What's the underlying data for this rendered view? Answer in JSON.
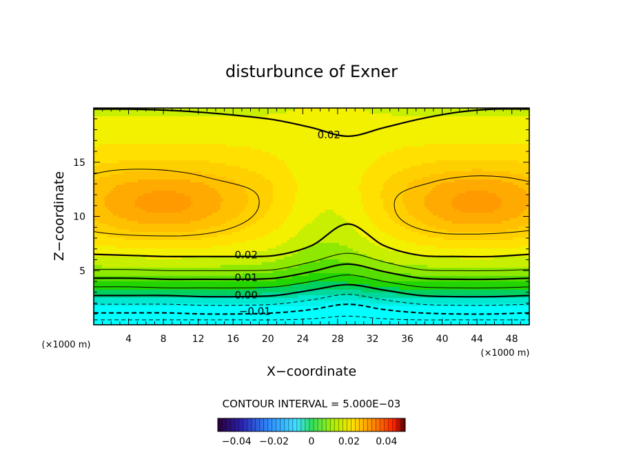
{
  "chart_data": {
    "type": "contour",
    "title": "disturbunce of Exner",
    "xlabel": "X−coordinate",
    "ylabel": "Z−coordinate",
    "x_unit": "(×1000 m)",
    "y_unit": "(×1000 m)",
    "xlim": [
      0,
      50
    ],
    "ylim": [
      0,
      20
    ],
    "x_ticks": [
      4,
      8,
      12,
      16,
      20,
      24,
      28,
      32,
      36,
      40,
      44,
      48
    ],
    "y_ticks": [
      5,
      10,
      15
    ],
    "contour_interval_text": "CONTOUR INTERVAL = 5.000E−03",
    "contour_interval": 0.005,
    "contour_labels": [
      {
        "text": "0.02",
        "x": 27,
        "z": 17.6
      },
      {
        "text": "0.02",
        "x": 17.5,
        "z": 6.5
      },
      {
        "text": "0.01",
        "x": 17.5,
        "z": 4.4
      },
      {
        "text": "0.00",
        "x": 17.5,
        "z": 2.8
      },
      {
        "text": "−0.01",
        "x": 18.5,
        "z": 1.3
      }
    ],
    "colorbar": {
      "range": [
        -0.05,
        0.05
      ],
      "tick_values": [
        -0.04,
        -0.02,
        0,
        0.02,
        0.04
      ],
      "tick_labels": [
        "−0.04",
        "−0.02",
        "0",
        "0.02",
        "0.04"
      ]
    },
    "contour_levels": [
      {
        "value": -0.015,
        "style": "dashed",
        "z_at": [
          0.45,
          0.45,
          0.45,
          0.45,
          0.45,
          0.45,
          0.55,
          0.8,
          0.55,
          0.45,
          0.45,
          0.45,
          0.45
        ]
      },
      {
        "value": -0.01,
        "style": "dashed-bold",
        "z_at": [
          1.1,
          1.1,
          1.1,
          1.0,
          1.0,
          1.1,
          1.4,
          1.9,
          1.4,
          1.1,
          1.0,
          1.0,
          1.1
        ]
      },
      {
        "value": -0.005,
        "style": "dashed",
        "z_at": [
          1.9,
          1.9,
          1.9,
          1.8,
          1.8,
          1.9,
          2.3,
          2.8,
          2.3,
          1.9,
          1.8,
          1.8,
          1.9
        ]
      },
      {
        "value": 0.0,
        "style": "bold",
        "z_at": [
          2.7,
          2.7,
          2.7,
          2.6,
          2.6,
          2.7,
          3.2,
          3.7,
          3.2,
          2.7,
          2.6,
          2.6,
          2.7
        ]
      },
      {
        "value": 0.005,
        "style": "thin",
        "z_at": [
          3.5,
          3.5,
          3.4,
          3.4,
          3.4,
          3.5,
          4.0,
          4.6,
          4.0,
          3.5,
          3.4,
          3.4,
          3.5
        ]
      },
      {
        "value": 0.01,
        "style": "bold",
        "z_at": [
          4.3,
          4.3,
          4.2,
          4.2,
          4.2,
          4.3,
          4.9,
          5.6,
          4.9,
          4.3,
          4.2,
          4.2,
          4.3
        ]
      },
      {
        "value": 0.015,
        "style": "thin",
        "z_at": [
          5.1,
          5.1,
          5.0,
          5.0,
          5.0,
          5.1,
          5.8,
          6.6,
          5.8,
          5.1,
          5.0,
          5.0,
          5.1
        ]
      },
      {
        "value": 0.02,
        "style": "bold",
        "z_at": [
          6.5,
          6.4,
          6.3,
          6.3,
          6.3,
          6.4,
          7.3,
          9.3,
          7.3,
          6.4,
          6.3,
          6.3,
          6.5
        ]
      },
      {
        "value": 0.02,
        "style": "bold",
        "z_at": [
          19.9,
          19.9,
          19.8,
          19.6,
          19.3,
          18.9,
          18.2,
          17.4,
          18.2,
          19.0,
          19.6,
          19.9,
          19.9
        ]
      }
    ],
    "closed_contours": [
      {
        "value": 0.025,
        "style": "thin",
        "x_range": [
          0,
          19
        ],
        "z_range": [
          8.2,
          14.4
        ],
        "side": "left"
      },
      {
        "value": 0.025,
        "style": "thin",
        "x_range": [
          34.5,
          50
        ],
        "z_range": [
          8.4,
          13.8
        ],
        "side": "right"
      }
    ],
    "field_bands": [
      {
        "level": 0.03,
        "color": "#ff9b00"
      },
      {
        "level": 0.0275,
        "color": "#ffaa00"
      },
      {
        "level": 0.025,
        "color": "#ffc000"
      },
      {
        "level": 0.0225,
        "color": "#ffd000"
      },
      {
        "level": 0.02,
        "color": "#ffe000"
      },
      {
        "level": 0.0175,
        "color": "#f3f000"
      },
      {
        "level": 0.015,
        "color": "#c8ef00"
      },
      {
        "level": 0.0125,
        "color": "#8ee800"
      },
      {
        "level": 0.01,
        "color": "#55de00"
      },
      {
        "level": 0.0075,
        "color": "#22d400"
      },
      {
        "level": 0.005,
        "color": "#00d060"
      },
      {
        "level": 0.0025,
        "color": "#00d89e"
      },
      {
        "level": 0.0,
        "color": "#00e8cf"
      },
      {
        "level": -0.0025,
        "color": "#00f2ea"
      },
      {
        "level": -0.1,
        "color": "#00ffff"
      }
    ],
    "colors": {
      "background": "#ffffff",
      "axes": "#000000"
    }
  }
}
